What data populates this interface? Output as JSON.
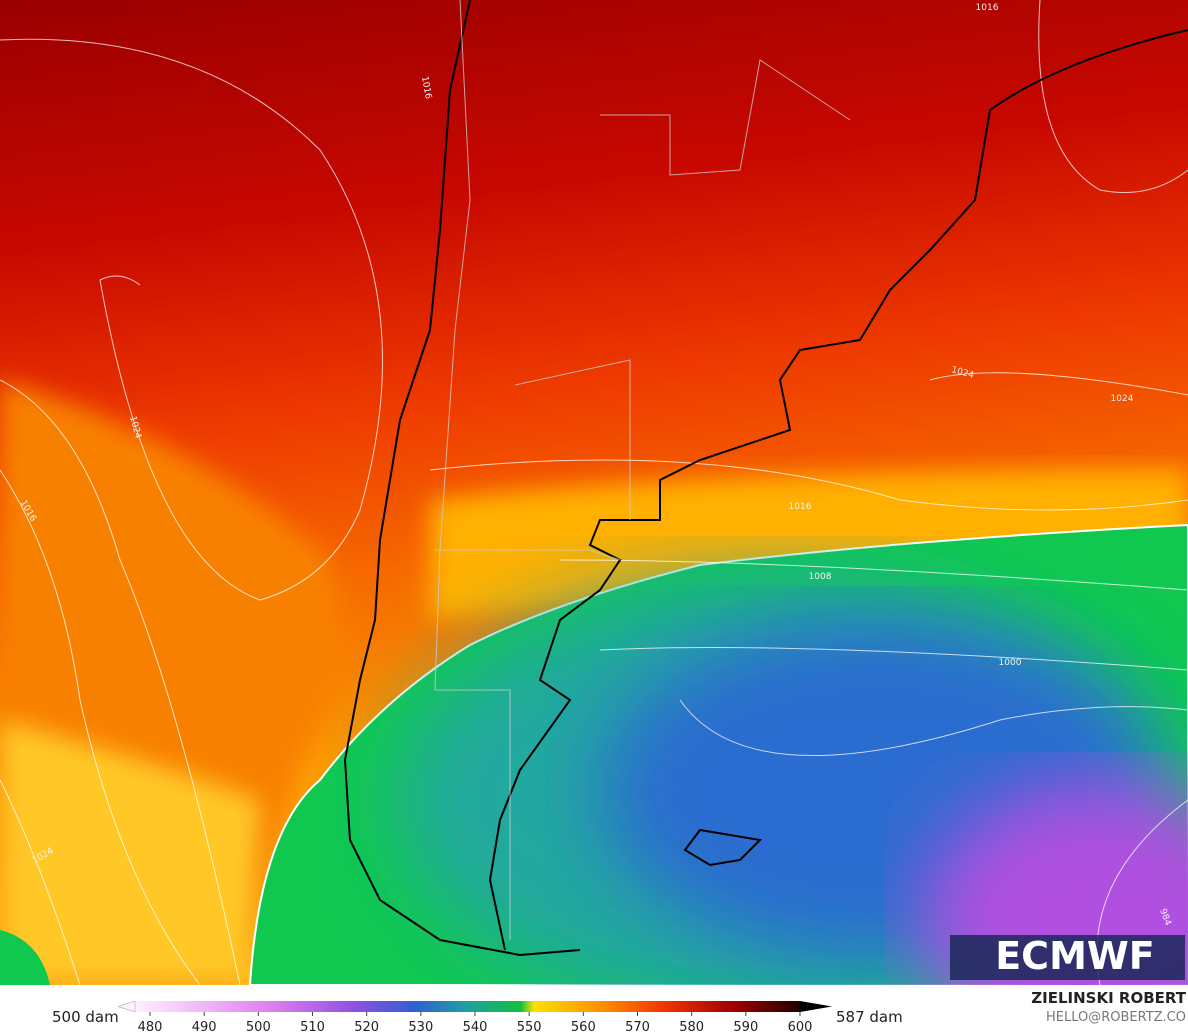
{
  "map": {
    "isobar_labels": [
      1016,
      1016,
      1024,
      1016,
      1024,
      1024,
      1024,
      1016,
      1008,
      1000,
      984
    ]
  },
  "logo": "ECMWF",
  "legend": {
    "left_label": "500 dam",
    "right_label": "587 dam",
    "ticks": [
      480,
      490,
      500,
      510,
      520,
      530,
      540,
      550,
      560,
      570,
      580,
      590,
      600
    ]
  },
  "credit": {
    "author": "ZIELINSKI ROBERT",
    "contact": "HELLO@ROBERTZ.CO"
  }
}
